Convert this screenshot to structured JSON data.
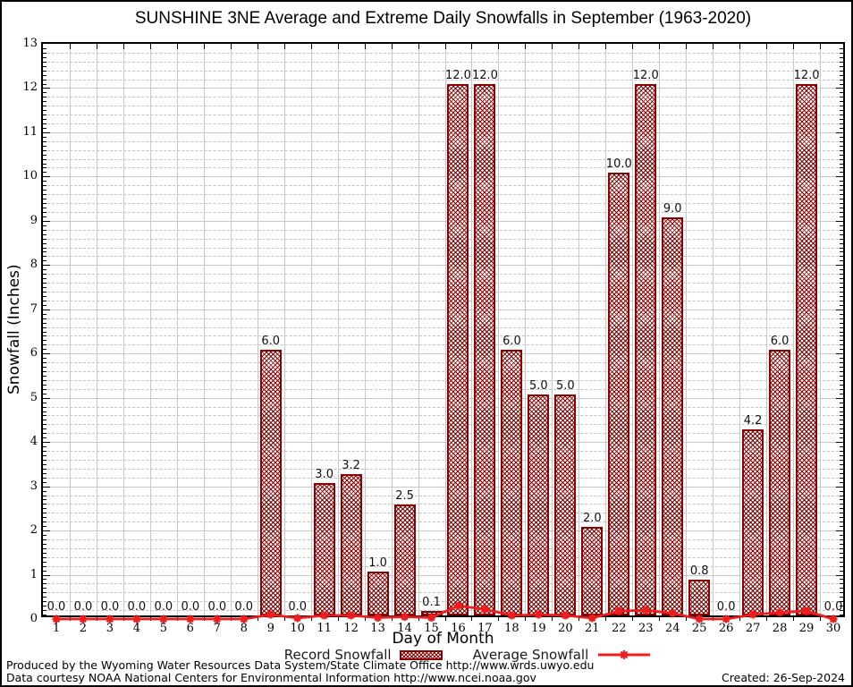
{
  "title": "SUNSHINE 3NE Average and Extreme Daily Snowfalls in September (1963-2020)",
  "axes": {
    "y_label": "Snowfall (Inches)",
    "x_label": "Day of Month",
    "y_ticks": [
      0,
      1,
      2,
      3,
      4,
      5,
      6,
      7,
      8,
      9,
      10,
      11,
      12,
      13
    ],
    "x_ticks": [
      1,
      2,
      3,
      4,
      5,
      6,
      7,
      8,
      9,
      10,
      11,
      12,
      13,
      14,
      15,
      16,
      17,
      18,
      19,
      20,
      21,
      22,
      23,
      24,
      25,
      26,
      27,
      28,
      29,
      30
    ]
  },
  "legend": {
    "record_label": "Record Snowfall",
    "average_label": "Average Snowfall"
  },
  "footer": {
    "line1": "Produced by the Wyoming Water Resources Data System/State Climate Office http://www.wrds.uwyo.edu",
    "line2": "Data courtesy NOAA National Centers for Environmental Information http://www.ncei.noaa.gov",
    "created": "Created: 26-Sep-2024"
  },
  "colors": {
    "bar_dark_red": "#8b0000",
    "line_red": "#ee1c1c",
    "grid_major": "#c8c8c8",
    "grid_minor": "#c3c3c3"
  },
  "chart_data": {
    "type": "bar",
    "title": "SUNSHINE 3NE Average and Extreme Daily Snowfalls in September (1963-2020)",
    "xlabel": "Day of Month",
    "ylabel": "Snowfall (Inches)",
    "ylim": [
      0,
      13
    ],
    "grid": "on",
    "legend_position": "bottom-center",
    "categories": [
      1,
      2,
      3,
      4,
      5,
      6,
      7,
      8,
      9,
      10,
      11,
      12,
      13,
      14,
      15,
      16,
      17,
      18,
      19,
      20,
      21,
      22,
      23,
      24,
      25,
      26,
      27,
      28,
      29,
      30
    ],
    "series": [
      {
        "name": "Record Snowfall",
        "type": "bar",
        "values": [
          0.0,
          0.0,
          0.0,
          0.0,
          0.0,
          0.0,
          0.0,
          0.0,
          6.0,
          0.0,
          3.0,
          3.2,
          1.0,
          2.5,
          0.1,
          12.0,
          12.0,
          6.0,
          5.0,
          5.0,
          2.0,
          10.0,
          12.0,
          9.0,
          0.8,
          0.0,
          4.2,
          6.0,
          12.0,
          0.0
        ]
      },
      {
        "name": "Average Snowfall",
        "type": "line",
        "values": [
          0.0,
          0.0,
          0.0,
          0.0,
          0.0,
          0.0,
          0.0,
          0.0,
          0.1,
          0.02,
          0.08,
          0.08,
          0.03,
          0.05,
          0.03,
          0.3,
          0.22,
          0.08,
          0.1,
          0.08,
          0.02,
          0.18,
          0.2,
          0.13,
          0.0,
          0.0,
          0.1,
          0.15,
          0.18,
          0.0
        ]
      }
    ],
    "bar_value_labels_shown": true
  }
}
